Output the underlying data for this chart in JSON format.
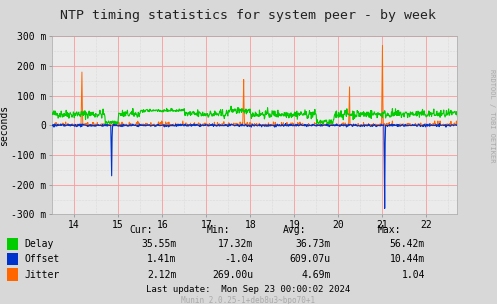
{
  "title": "NTP timing statistics for system peer - by week",
  "ylabel": "seconds",
  "right_label": "RRDTOOL / TOBI OETIKER",
  "x_ticks": [
    14,
    15,
    16,
    17,
    18,
    19,
    20,
    21,
    22
  ],
  "x_min": 13.5,
  "x_max": 22.7,
  "y_min": -300,
  "y_max": 300,
  "y_ticks": [
    -300,
    -200,
    -100,
    0,
    100,
    200,
    300
  ],
  "y_tick_labels": [
    "-300 m",
    "-200 m",
    "-100 m",
    "0",
    "100 m",
    "200 m",
    "300 m"
  ],
  "bg_color": "#d8d8d8",
  "plot_bg_color": "#ebebeb",
  "grid_color_major": "#ff9999",
  "grid_color_minor": "#cccccc",
  "delay_color": "#00cc00",
  "offset_color": "#0033cc",
  "jitter_color": "#ff6600",
  "legend_items": [
    "Delay",
    "Offset",
    "Jitter"
  ],
  "legend_colors": [
    "#00cc00",
    "#0033cc",
    "#ff6600"
  ],
  "stats_headers": [
    "Cur:",
    "Min:",
    "Avg:",
    "Max:"
  ],
  "stats_delay": [
    "35.55m",
    "17.32m",
    "36.73m",
    "56.42m"
  ],
  "stats_offset": [
    "1.41m",
    "-1.04",
    "609.07u",
    "10.44m"
  ],
  "stats_jitter": [
    "2.12m",
    "269.00u",
    "4.69m",
    "1.04"
  ],
  "last_update": "Last update:  Mon Sep 23 00:00:02 2024",
  "munin_version": "Munin 2.0.25-1+deb8u3~bpo70+1"
}
